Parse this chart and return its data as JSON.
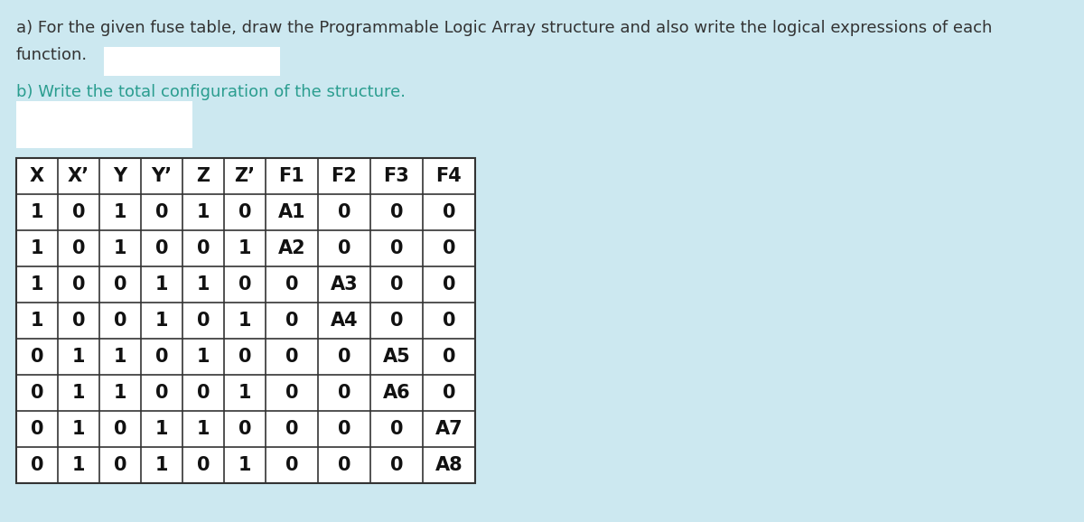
{
  "background_color": "#cce8f0",
  "text_color_a": "#333333",
  "text_color_b": "#2a9d8f",
  "text_a_line1": "a) For the given fuse table, draw the Programmable Logic Array structure and also write the logical expressions of each",
  "text_a_line2": "function.",
  "text_b": "b) Write the total configuration of the structure.",
  "header_row": [
    "X",
    "X’",
    "Y",
    "Y’",
    "Z",
    "Z’",
    "F1",
    "F2",
    "F3",
    "F4"
  ],
  "rows": [
    [
      "1",
      "0",
      "1",
      "0",
      "1",
      "0",
      "A1",
      "0",
      "0",
      "0"
    ],
    [
      "1",
      "0",
      "1",
      "0",
      "0",
      "1",
      "A2",
      "0",
      "0",
      "0"
    ],
    [
      "1",
      "0",
      "0",
      "1",
      "1",
      "0",
      "0",
      "A3",
      "0",
      "0"
    ],
    [
      "1",
      "0",
      "0",
      "1",
      "0",
      "1",
      "0",
      "A4",
      "0",
      "0"
    ],
    [
      "0",
      "1",
      "1",
      "0",
      "1",
      "0",
      "0",
      "0",
      "A5",
      "0"
    ],
    [
      "0",
      "1",
      "1",
      "0",
      "0",
      "1",
      "0",
      "0",
      "A6",
      "0"
    ],
    [
      "0",
      "1",
      "0",
      "1",
      "1",
      "0",
      "0",
      "0",
      "0",
      "A7"
    ],
    [
      "0",
      "1",
      "0",
      "1",
      "0",
      "1",
      "0",
      "0",
      "0",
      "A8"
    ]
  ]
}
